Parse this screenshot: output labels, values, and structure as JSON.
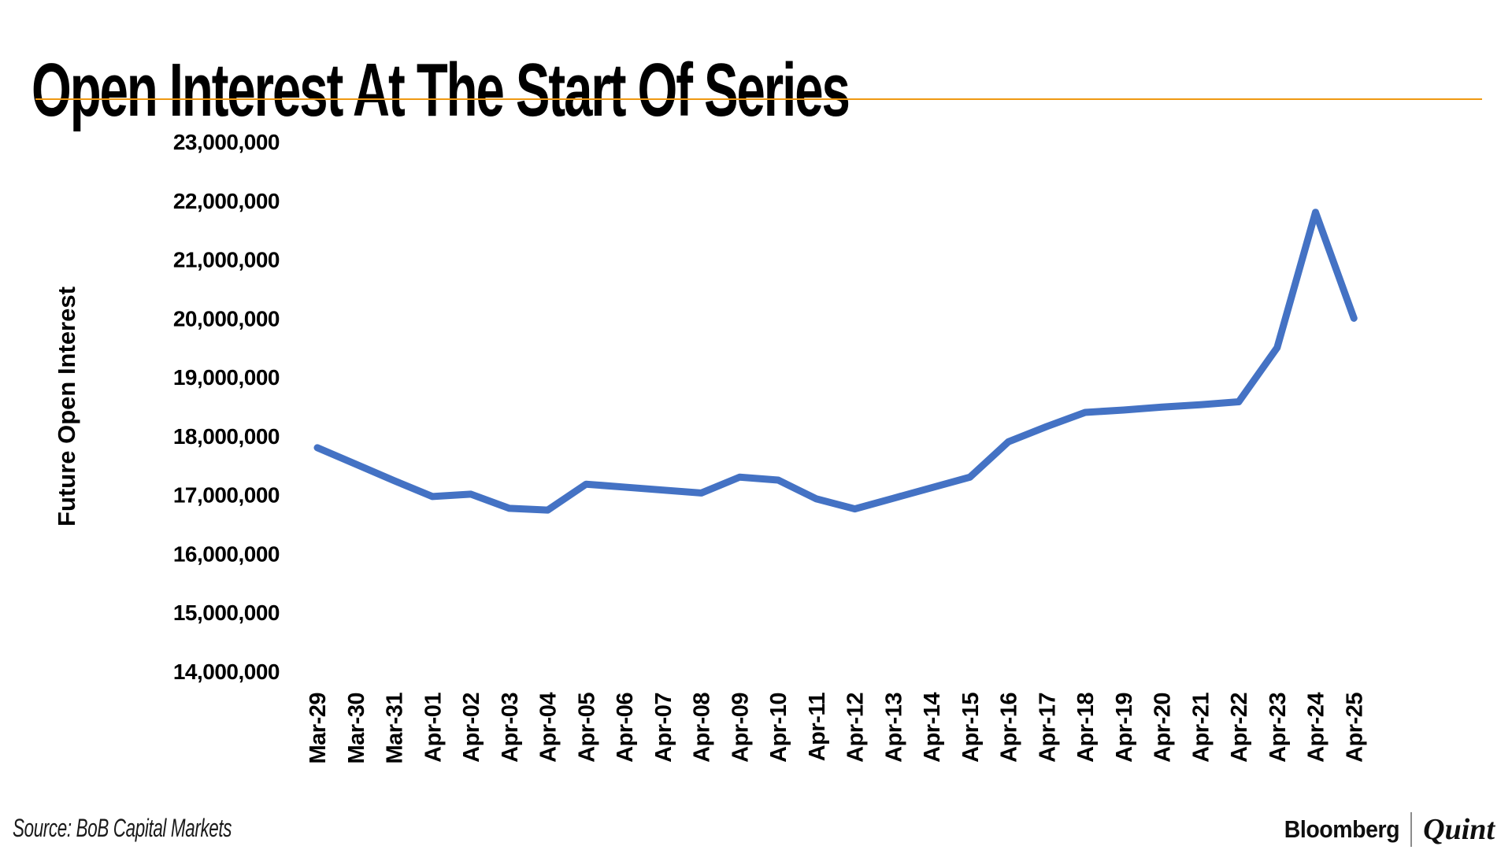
{
  "header": {
    "title": "Open Interest At The Start Of Series",
    "accent_color": "#EF9912"
  },
  "chart_data": {
    "type": "line",
    "title": "Open Interest At The Start Of Series",
    "xlabel": "",
    "ylabel": "Future Open Interest",
    "legend_position": "none",
    "grid": false,
    "ylim": [
      14000000,
      23000000
    ],
    "ytick_step": 1000000,
    "categories": [
      "Mar-29",
      "Mar-30",
      "Mar-31",
      "Apr-01",
      "Apr-02",
      "Apr-03",
      "Apr-04",
      "Apr-05",
      "Apr-06",
      "Apr-07",
      "Apr-08",
      "Apr-09",
      "Apr-10",
      "Apr-11",
      "Apr-12",
      "Apr-13",
      "Apr-14",
      "Apr-15",
      "Apr-16",
      "Apr-17",
      "Apr-18",
      "Apr-19",
      "Apr-20",
      "Apr-21",
      "Apr-22",
      "Apr-23",
      "Apr-24",
      "Apr-25"
    ],
    "series": [
      {
        "name": "Future Open Interest",
        "color": "#4472C4",
        "values": [
          17800000,
          17520000,
          17240000,
          16970000,
          17010000,
          16770000,
          16740000,
          17180000,
          17130000,
          17080000,
          17030000,
          17300000,
          17250000,
          16930000,
          16760000,
          16940000,
          17120000,
          17300000,
          17900000,
          18160000,
          18400000,
          18440000,
          18490000,
          18530000,
          18580000,
          19500000,
          21800000,
          20000000
        ]
      }
    ]
  },
  "footer": {
    "source": "Source: BoB Capital Markets",
    "brand": {
      "bloomberg": "Bloomberg",
      "quint": "Quint"
    }
  }
}
